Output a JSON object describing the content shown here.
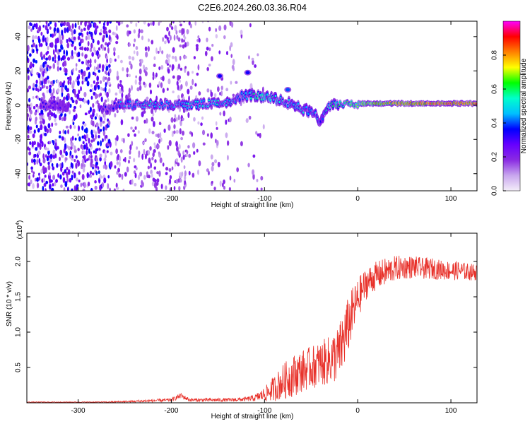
{
  "title": "C2E6.2024.260.03.36.R04",
  "colors": {
    "snr_line": "#e8312a",
    "frame": "#000000",
    "background": "#ffffff"
  },
  "chart_data": [
    {
      "type": "heatmap",
      "xlabel": "Height of straight line (km)",
      "ylabel": "Frequency (Hz)",
      "xlim": [
        -355,
        128
      ],
      "ylim": [
        -50,
        49
      ],
      "x_ticks": [
        -300,
        -200,
        -100,
        0,
        100
      ],
      "y_ticks": [
        -40,
        -20,
        0,
        20,
        40
      ],
      "x_tick_labels": [
        "-300",
        "-200",
        "-100",
        "0",
        "100"
      ],
      "y_tick_labels": [
        "-40",
        "-20",
        "0",
        "20",
        "40"
      ],
      "colorbar": {
        "label": "Normalized spectral amplitude",
        "range": [
          0,
          1
        ],
        "ticks": [
          0.0,
          0.2,
          0.4,
          0.6,
          0.8
        ],
        "tick_labels": [
          "0.0",
          "0.2",
          "0.4",
          "0.6",
          "0.8"
        ],
        "colors": [
          "#f4eef9",
          "#c8a6ee",
          "#8a2be2",
          "#6600ff",
          "#0000ff",
          "#00bfff",
          "#00ffcc",
          "#00ff00",
          "#ffff00",
          "#ff8000",
          "#ff0000",
          "#ff00ff"
        ]
      },
      "signal_trace": [
        {
          "x": -340,
          "y": 1,
          "amp": 0.3
        },
        {
          "x": -320,
          "y": 0,
          "amp": 0.25
        },
        {
          "x": -270,
          "y": -2,
          "amp": 0.3
        },
        {
          "x": -255,
          "y": 1,
          "amp": 0.45
        },
        {
          "x": -240,
          "y": 0,
          "amp": 0.45
        },
        {
          "x": -220,
          "y": 1,
          "amp": 0.5
        },
        {
          "x": -200,
          "y": 0,
          "amp": 0.45
        },
        {
          "x": -180,
          "y": 0,
          "amp": 0.5
        },
        {
          "x": -160,
          "y": 1,
          "amp": 0.5
        },
        {
          "x": -140,
          "y": 2,
          "amp": 0.5
        },
        {
          "x": -125,
          "y": 5,
          "amp": 0.45
        },
        {
          "x": -110,
          "y": 6,
          "amp": 0.55
        },
        {
          "x": -95,
          "y": 4,
          "amp": 0.55
        },
        {
          "x": -80,
          "y": 3,
          "amp": 0.5
        },
        {
          "x": -70,
          "y": 0,
          "amp": 0.5
        },
        {
          "x": -60,
          "y": -2,
          "amp": 0.5
        },
        {
          "x": -45,
          "y": -5,
          "amp": 0.45
        },
        {
          "x": -40,
          "y": -10,
          "amp": 0.4
        },
        {
          "x": -30,
          "y": 0,
          "amp": 0.55
        },
        {
          "x": -15,
          "y": 1,
          "amp": 0.6
        },
        {
          "x": 0,
          "y": 1,
          "amp": 0.7
        },
        {
          "x": 20,
          "y": 1,
          "amp": 0.8
        },
        {
          "x": 50,
          "y": 1,
          "amp": 0.85
        },
        {
          "x": 80,
          "y": 1,
          "amp": 0.9
        },
        {
          "x": 110,
          "y": 1,
          "amp": 0.9
        },
        {
          "x": 128,
          "y": 1,
          "amp": 0.9
        }
      ],
      "features": [
        {
          "x": -148,
          "y": 17,
          "amp": 0.35
        },
        {
          "x": -118,
          "y": 19,
          "amp": 0.35
        },
        {
          "x": -75,
          "y": 9,
          "amp": 0.4
        }
      ]
    },
    {
      "type": "line",
      "xlabel": "Height of straight line (km)",
      "ylabel": "SNR (10 * v/v)",
      "y_multiplier_label": "(x10",
      "y_multiplier_exp": "4",
      "y_multiplier_close": ")",
      "xlim": [
        -355,
        128
      ],
      "ylim": [
        0,
        2.4
      ],
      "x_ticks": [
        -300,
        -200,
        -100,
        0,
        100
      ],
      "y_ticks": [
        0.5,
        1.0,
        1.5,
        2.0
      ],
      "x_tick_labels": [
        "-300",
        "-200",
        "-100",
        "0",
        "100"
      ],
      "y_tick_labels": [
        "0.5",
        "1.0",
        "1.5",
        "2.0"
      ],
      "series": [
        {
          "x": [
            -355,
            -330,
            -300,
            -270,
            -240,
            -220,
            -200,
            -190,
            -180,
            -160,
            -140,
            -120,
            -110,
            -100,
            -90,
            -80,
            -70,
            -60,
            -50,
            -40,
            -30,
            -20,
            -15,
            -10,
            -5,
            0,
            5,
            10,
            20,
            30,
            40,
            50,
            60,
            70,
            80,
            90,
            100,
            110,
            120,
            128
          ],
          "values": [
            0.01,
            0.01,
            0.01,
            0.01,
            0.02,
            0.03,
            0.04,
            0.1,
            0.04,
            0.04,
            0.04,
            0.05,
            0.07,
            0.12,
            0.2,
            0.3,
            0.38,
            0.45,
            0.5,
            0.55,
            0.6,
            0.7,
            0.9,
            1.1,
            1.3,
            1.45,
            1.6,
            1.7,
            1.8,
            1.85,
            1.9,
            1.92,
            1.92,
            1.9,
            1.9,
            1.88,
            1.87,
            1.87,
            1.85,
            1.85
          ],
          "noise": [
            0.005,
            0.005,
            0.005,
            0.008,
            0.015,
            0.02,
            0.025,
            0.04,
            0.025,
            0.025,
            0.025,
            0.03,
            0.05,
            0.1,
            0.18,
            0.25,
            0.3,
            0.3,
            0.3,
            0.32,
            0.35,
            0.4,
            0.45,
            0.4,
            0.35,
            0.3,
            0.25,
            0.22,
            0.2,
            0.2,
            0.18,
            0.17,
            0.16,
            0.15,
            0.15,
            0.14,
            0.14,
            0.13,
            0.12,
            0.12
          ]
        }
      ]
    }
  ]
}
